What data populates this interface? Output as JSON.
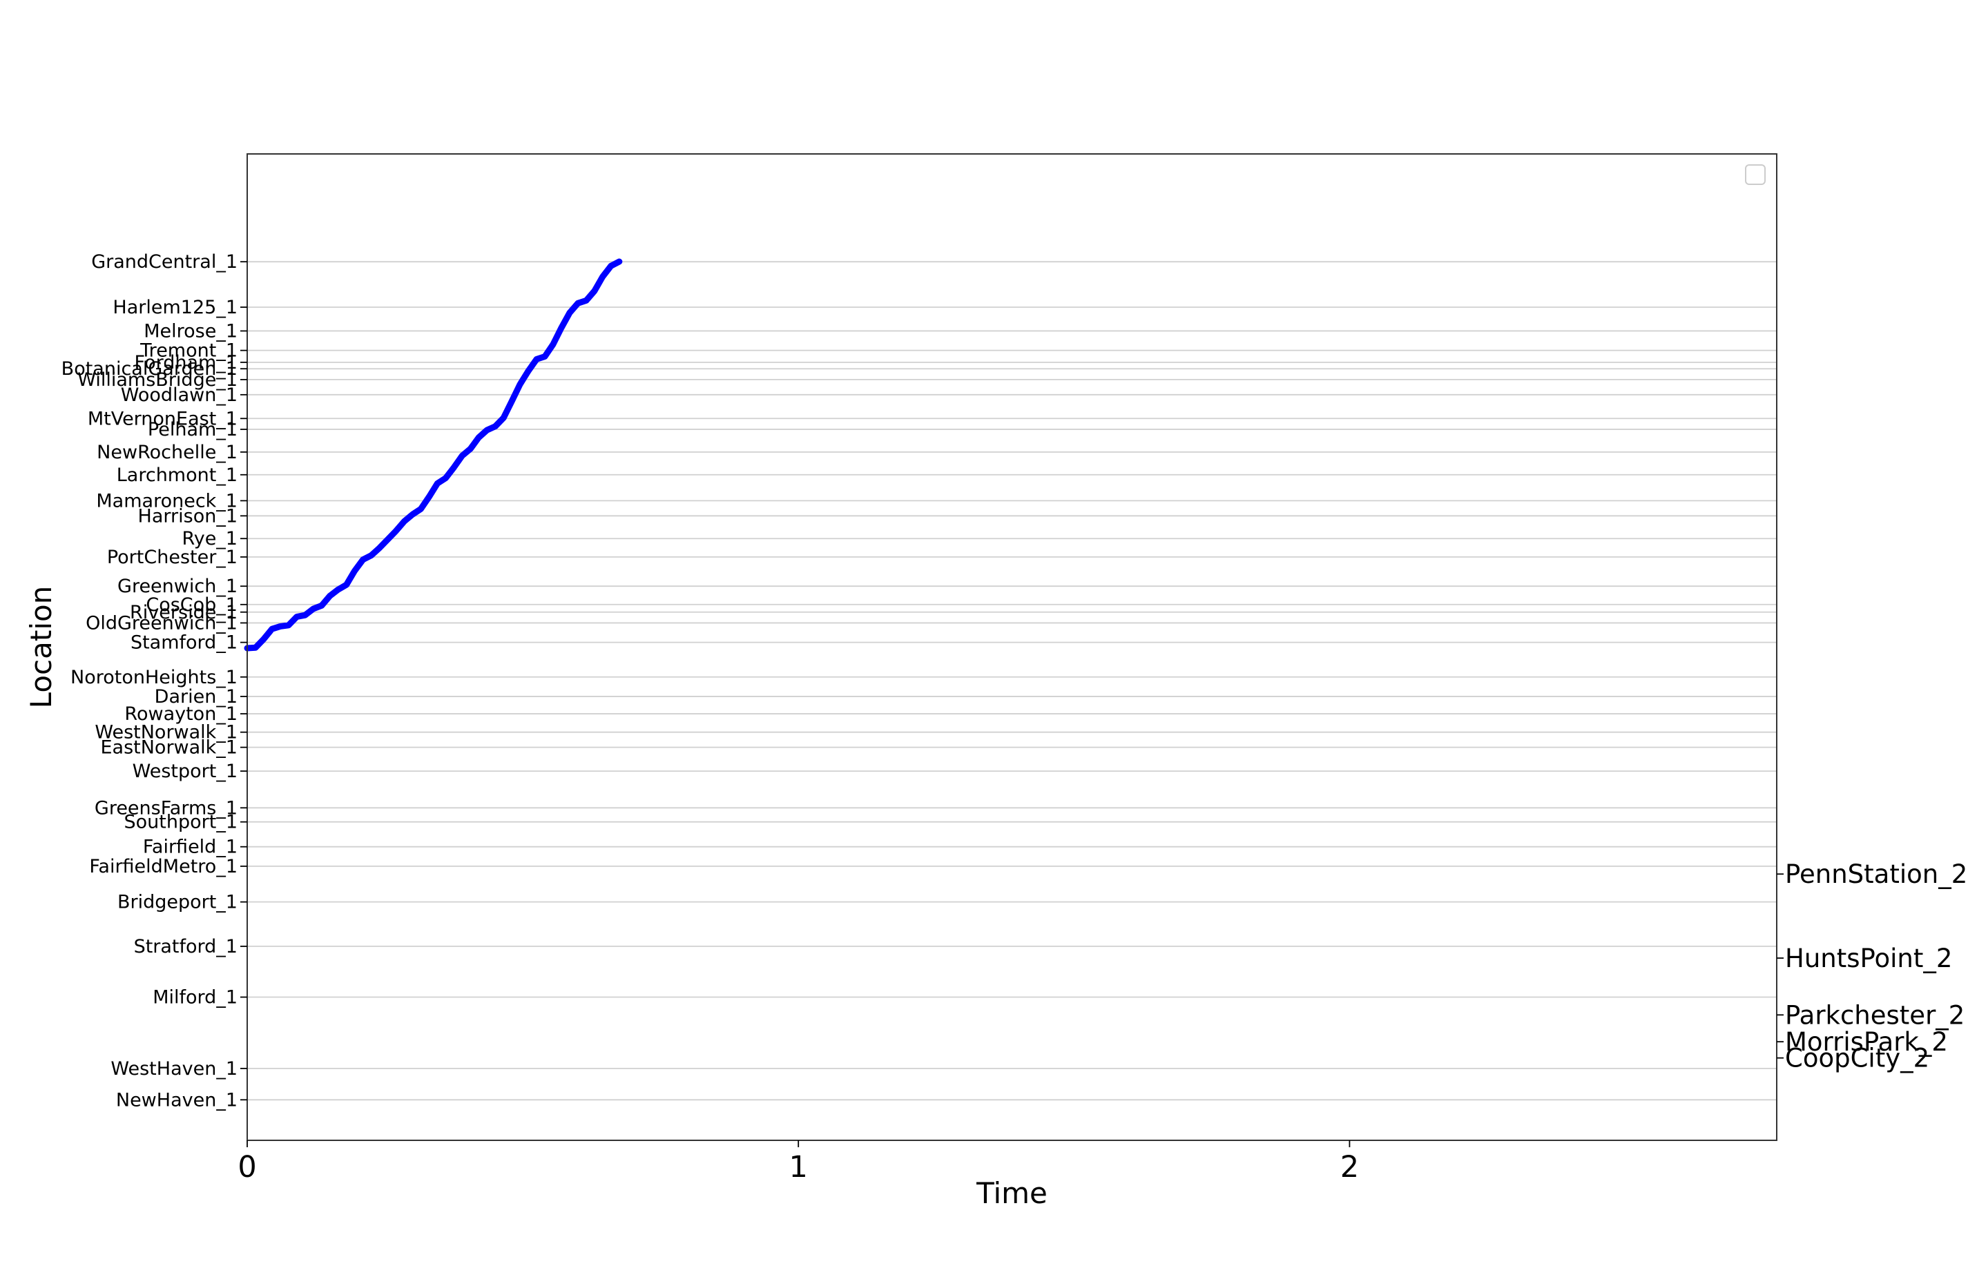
{
  "chart_data": {
    "type": "line",
    "xlabel": "Time",
    "ylabel": "Location",
    "xlim": [
      0,
      2.775
    ],
    "ylim": [
      -0.4,
      1.45
    ],
    "x_ticks": [
      {
        "value": 0,
        "label": "0"
      },
      {
        "value": 1,
        "label": "1"
      },
      {
        "value": 2,
        "label": "2"
      }
    ],
    "grid": "horizontal",
    "legend": {
      "position": "top-right",
      "entries": []
    },
    "colors": {
      "series": "#0000ff",
      "grid": "#d0d0d0",
      "frame": "#333333"
    },
    "left_axis_ticks": [
      {
        "label": "GrandCentral_1",
        "value": 1.2478
      },
      {
        "label": "Harlem125_1",
        "value": 1.1626
      },
      {
        "label": "Melrose_1",
        "value": 1.118
      },
      {
        "label": "Tremont_1",
        "value": 1.0815
      },
      {
        "label": "Fordham_1",
        "value": 1.0592
      },
      {
        "label": "BotanicalGarden_1",
        "value": 1.0471
      },
      {
        "label": "WilliamsBridge_1",
        "value": 1.0268
      },
      {
        "label": "Woodlawn_1",
        "value": 0.9984
      },
      {
        "label": "MtVernonEast_1",
        "value": 0.9538
      },
      {
        "label": "Pelham_1",
        "value": 0.9335
      },
      {
        "label": "NewRochelle_1",
        "value": 0.8909
      },
      {
        "label": "Larchmont_1",
        "value": 0.8483
      },
      {
        "label": "Mamaroneck_1",
        "value": 0.7996
      },
      {
        "label": "Harrison_1",
        "value": 0.7712
      },
      {
        "label": "Rye_1",
        "value": 0.7286
      },
      {
        "label": "PortChester_1",
        "value": 0.6941
      },
      {
        "label": "Greenwich_1",
        "value": 0.6393
      },
      {
        "label": "CosCob_1",
        "value": 0.6049
      },
      {
        "label": "Riverside_1",
        "value": 0.5907
      },
      {
        "label": "OldGreenwich_1",
        "value": 0.5704
      },
      {
        "label": "Stamford_1",
        "value": 0.5339
      },
      {
        "label": "NorotonHeights_1",
        "value": 0.469
      },
      {
        "label": "Darien_1",
        "value": 0.4325
      },
      {
        "label": "Rowayton_1",
        "value": 0.4
      },
      {
        "label": "WestNorwalk_1",
        "value": 0.3655
      },
      {
        "label": "EastNorwalk_1",
        "value": 0.3371
      },
      {
        "label": "Westport_1",
        "value": 0.2925
      },
      {
        "label": "GreensFarms_1",
        "value": 0.2236
      },
      {
        "label": "Southport_1",
        "value": 0.1972
      },
      {
        "label": "Fairfield_1",
        "value": 0.1506
      },
      {
        "label": "FairfieldMetro_1",
        "value": 0.1141
      },
      {
        "label": "Bridgeport_1",
        "value": 0.0471
      },
      {
        "label": "Stratford_1",
        "value": -0.0361
      },
      {
        "label": "Milford_1",
        "value": -0.1314
      },
      {
        "label": "WestHaven_1",
        "value": -0.2652
      },
      {
        "label": "NewHaven_1",
        "value": -0.324
      }
    ],
    "right_axis_ticks": [
      {
        "label": "PennStation_2",
        "value": 0.0994
      },
      {
        "label": "HuntsPoint_2",
        "value": -0.0582
      },
      {
        "label": "Parkchester_2",
        "value": -0.1648
      },
      {
        "label": "MorrisPark_2",
        "value": -0.2151
      },
      {
        "label": "CoopCity_2",
        "value": -0.2455
      }
    ],
    "series": [
      {
        "color": "#0000ff",
        "points": [
          [
            0.0,
            0.523
          ],
          [
            0.015,
            0.524
          ],
          [
            0.03,
            0.54
          ],
          [
            0.045,
            0.559
          ],
          [
            0.06,
            0.564
          ],
          [
            0.075,
            0.566
          ],
          [
            0.09,
            0.582
          ],
          [
            0.105,
            0.585
          ],
          [
            0.12,
            0.597
          ],
          [
            0.135,
            0.603
          ],
          [
            0.15,
            0.621
          ],
          [
            0.165,
            0.633
          ],
          [
            0.18,
            0.642
          ],
          [
            0.195,
            0.668
          ],
          [
            0.21,
            0.689
          ],
          [
            0.225,
            0.697
          ],
          [
            0.24,
            0.711
          ],
          [
            0.255,
            0.727
          ],
          [
            0.27,
            0.743
          ],
          [
            0.285,
            0.761
          ],
          [
            0.3,
            0.774
          ],
          [
            0.315,
            0.784
          ],
          [
            0.33,
            0.807
          ],
          [
            0.345,
            0.832
          ],
          [
            0.36,
            0.842
          ],
          [
            0.375,
            0.862
          ],
          [
            0.39,
            0.884
          ],
          [
            0.405,
            0.897
          ],
          [
            0.42,
            0.918
          ],
          [
            0.435,
            0.932
          ],
          [
            0.45,
            0.939
          ],
          [
            0.465,
            0.955
          ],
          [
            0.48,
            0.986
          ],
          [
            0.495,
            1.018
          ],
          [
            0.51,
            1.043
          ],
          [
            0.525,
            1.065
          ],
          [
            0.54,
            1.07
          ],
          [
            0.555,
            1.093
          ],
          [
            0.57,
            1.124
          ],
          [
            0.585,
            1.152
          ],
          [
            0.6,
            1.17
          ],
          [
            0.615,
            1.175
          ],
          [
            0.63,
            1.193
          ],
          [
            0.645,
            1.22
          ],
          [
            0.66,
            1.24
          ],
          [
            0.675,
            1.248
          ]
        ]
      }
    ]
  }
}
